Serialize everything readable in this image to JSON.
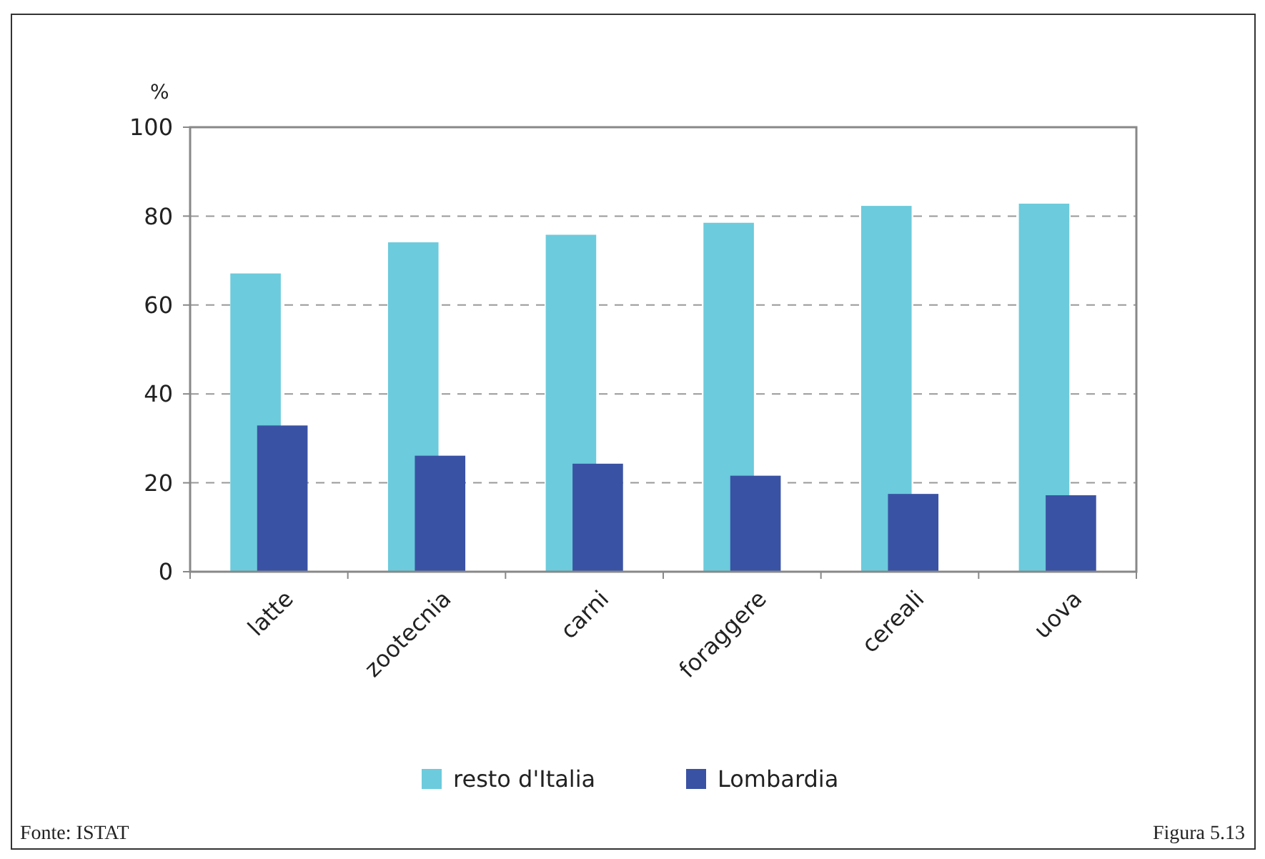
{
  "chart_data": {
    "type": "bar",
    "ylabel": "%",
    "categories": [
      "latte",
      "zootecnia",
      "carni",
      "foraggere",
      "cereali",
      "uova"
    ],
    "series": [
      {
        "name": "resto d'Italia",
        "color": "#6ccbdc",
        "values": [
          67.1,
          74.1,
          75.8,
          78.5,
          82.3,
          82.8
        ]
      },
      {
        "name": "Lombardia",
        "color": "#3a52a4",
        "values": [
          32.9,
          26.1,
          24.3,
          21.6,
          17.5,
          17.2
        ]
      }
    ],
    "ylim": [
      0,
      100
    ],
    "yticks": [
      0,
      20,
      40,
      60,
      80,
      100
    ],
    "grid": "y",
    "legend": "bottom",
    "annotations": [
      "Fonte: ISTAT",
      "Figura 5.13"
    ]
  }
}
